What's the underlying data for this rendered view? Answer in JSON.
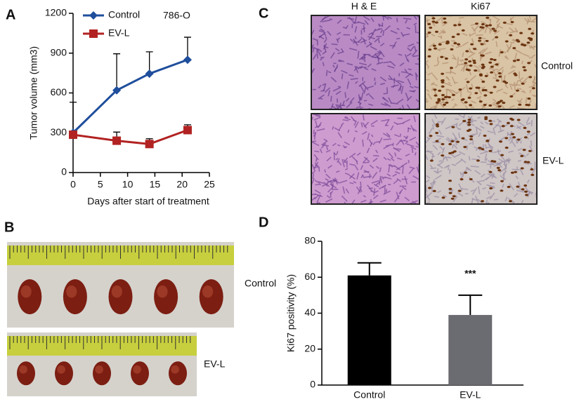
{
  "panel_labels": [
    "A",
    "B",
    "C",
    "D"
  ],
  "panel_b": {
    "labels": [
      "Control",
      "EV-L"
    ]
  },
  "panel_c": {
    "columns": [
      "H & E",
      "Ki67"
    ],
    "rows": [
      "Control",
      "EV-L"
    ]
  },
  "chart_data": [
    {
      "type": "line",
      "annotation": "786-O",
      "xlabel": "Days after start of treatment",
      "ylabel": "Tumor volume (mm3)",
      "x": [
        0,
        8,
        14,
        21
      ],
      "series": [
        {
          "name": "Control",
          "color": "#1f4e9c",
          "marker": "diamond",
          "values": [
            300,
            620,
            745,
            850
          ],
          "errors": [
            230,
            275,
            165,
            170
          ]
        },
        {
          "name": "EV-L",
          "color": "#b22222",
          "marker": "square",
          "values": [
            285,
            240,
            215,
            320
          ],
          "errors": [
            null,
            65,
            40,
            40
          ]
        }
      ],
      "xlim": [
        0,
        25
      ],
      "xticks": [
        0,
        5,
        10,
        15,
        20,
        25
      ],
      "ylim": [
        0,
        1200
      ],
      "yticks": [
        0,
        300,
        600,
        900,
        1200
      ],
      "legend": "upper left"
    },
    {
      "type": "bar",
      "ylabel": "Ki67 positivity (%)",
      "annotation": "***",
      "categories": [
        "Control",
        "EV-L"
      ],
      "values": [
        61,
        39
      ],
      "errors": [
        7,
        11
      ],
      "colors": [
        "#000000",
        "#6b6b72"
      ],
      "ylim": [
        0,
        80
      ],
      "yticks": [
        0,
        20,
        40,
        60,
        80
      ]
    }
  ]
}
